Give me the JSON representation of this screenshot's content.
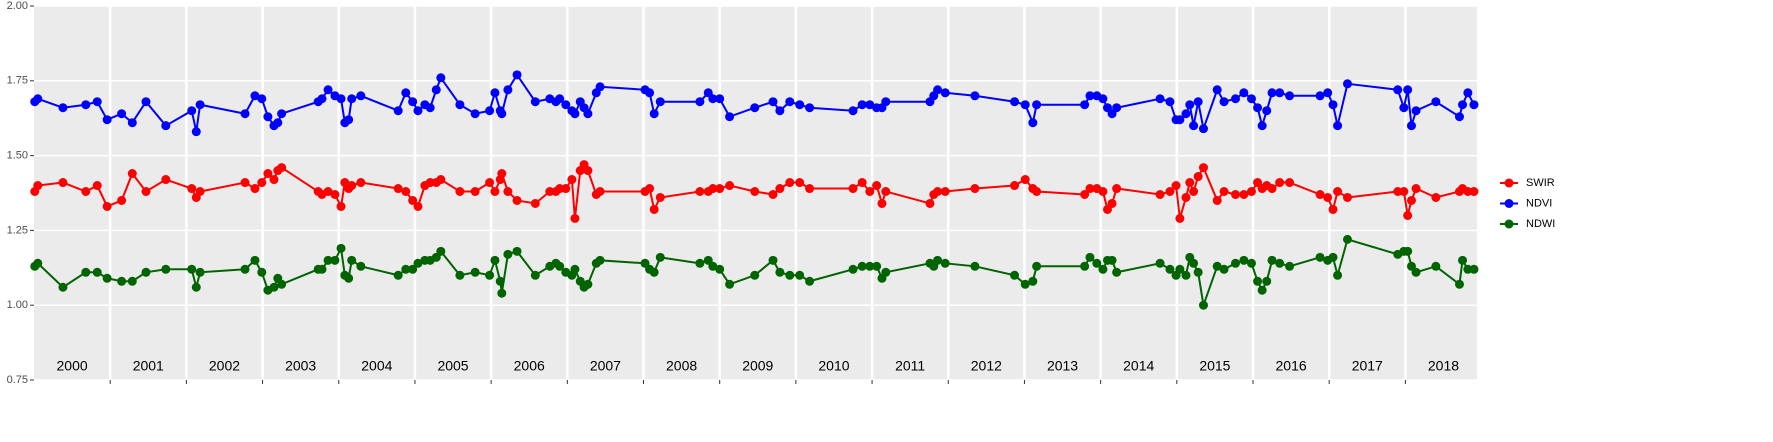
{
  "chart_data": {
    "type": "line",
    "x": [
      2000.01,
      2000.05,
      2000.38,
      2000.68,
      2000.83,
      2000.96,
      2001.15,
      2001.29,
      2001.47,
      2001.73,
      2002.07,
      2002.13,
      2002.18,
      2002.77,
      2002.9,
      2002.99,
      2003.07,
      2003.15,
      2003.2,
      2003.25,
      2003.73,
      2003.78,
      2003.86,
      2003.95,
      2004.03,
      2004.08,
      2004.13,
      2004.17,
      2004.29,
      2004.78,
      2004.88,
      2004.97,
      2005.04,
      2005.13,
      2005.2,
      2005.28,
      2005.34,
      2005.59,
      2005.79,
      2005.98,
      2006.05,
      2006.12,
      2006.14,
      2006.22,
      2006.34,
      2006.58,
      2006.77,
      2006.85,
      2006.9,
      2006.98,
      2007.06,
      2007.1,
      2007.17,
      2007.22,
      2007.27,
      2007.38,
      2007.43,
      2008.02,
      2008.08,
      2008.14,
      2008.22,
      2008.74,
      2008.85,
      2008.91,
      2009.0,
      2009.13,
      2009.46,
      2009.7,
      2009.79,
      2009.92,
      2010.05,
      2010.18,
      2010.75,
      2010.87,
      2010.97,
      2011.06,
      2011.13,
      2011.18,
      2011.76,
      2011.81,
      2011.86,
      2011.96,
      2012.35,
      2012.87,
      2013.01,
      2013.11,
      2013.16,
      2013.79,
      2013.86,
      2013.95,
      2014.03,
      2014.09,
      2014.15,
      2014.21,
      2014.78,
      2014.91,
      2014.99,
      2015.04,
      2015.12,
      2015.17,
      2015.22,
      2015.28,
      2015.35,
      2015.53,
      2015.62,
      2015.77,
      2015.88,
      2015.98,
      2016.06,
      2016.12,
      2016.18,
      2016.25,
      2016.35,
      2016.48,
      2016.88,
      2016.98,
      2017.05,
      2017.11,
      2017.24,
      2017.9,
      2017.98,
      2018.03,
      2018.08,
      2018.14,
      2018.4,
      2018.71,
      2018.75,
      2018.82,
      2018.9
    ],
    "series": [
      {
        "name": "SWIR",
        "color": "#ff0000",
        "values": [
          1.38,
          1.4,
          1.41,
          1.38,
          1.4,
          1.33,
          1.35,
          1.44,
          1.38,
          1.42,
          1.39,
          1.36,
          1.38,
          1.41,
          1.39,
          1.41,
          1.44,
          1.42,
          1.45,
          1.46,
          1.38,
          1.37,
          1.38,
          1.37,
          1.33,
          1.41,
          1.39,
          1.4,
          1.41,
          1.39,
          1.38,
          1.35,
          1.33,
          1.4,
          1.41,
          1.41,
          1.42,
          1.38,
          1.38,
          1.41,
          1.38,
          1.42,
          1.44,
          1.38,
          1.35,
          1.34,
          1.38,
          1.38,
          1.39,
          1.39,
          1.42,
          1.29,
          1.45,
          1.47,
          1.45,
          1.37,
          1.38,
          1.38,
          1.39,
          1.32,
          1.36,
          1.38,
          1.38,
          1.39,
          1.39,
          1.4,
          1.38,
          1.37,
          1.39,
          1.41,
          1.41,
          1.39,
          1.39,
          1.41,
          1.38,
          1.4,
          1.34,
          1.38,
          1.34,
          1.37,
          1.38,
          1.38,
          1.39,
          1.4,
          1.42,
          1.39,
          1.38,
          1.37,
          1.39,
          1.39,
          1.38,
          1.32,
          1.34,
          1.39,
          1.37,
          1.38,
          1.4,
          1.29,
          1.36,
          1.41,
          1.38,
          1.43,
          1.46,
          1.35,
          1.38,
          1.37,
          1.37,
          1.38,
          1.41,
          1.39,
          1.4,
          1.39,
          1.41,
          1.41,
          1.37,
          1.36,
          1.32,
          1.38,
          1.36,
          1.38,
          1.38,
          1.3,
          1.35,
          1.39,
          1.36,
          1.38,
          1.39,
          1.38,
          1.38
        ]
      },
      {
        "name": "NDVI",
        "color": "#0000ff",
        "values": [
          1.68,
          1.69,
          1.66,
          1.67,
          1.68,
          1.62,
          1.64,
          1.61,
          1.68,
          1.6,
          1.65,
          1.58,
          1.67,
          1.64,
          1.7,
          1.69,
          1.63,
          1.6,
          1.61,
          1.64,
          1.68,
          1.69,
          1.72,
          1.7,
          1.69,
          1.61,
          1.62,
          1.69,
          1.7,
          1.65,
          1.71,
          1.68,
          1.65,
          1.67,
          1.66,
          1.72,
          1.76,
          1.67,
          1.64,
          1.65,
          1.71,
          1.65,
          1.64,
          1.72,
          1.77,
          1.68,
          1.69,
          1.68,
          1.69,
          1.67,
          1.65,
          1.64,
          1.68,
          1.66,
          1.64,
          1.71,
          1.73,
          1.72,
          1.71,
          1.64,
          1.68,
          1.68,
          1.71,
          1.69,
          1.69,
          1.63,
          1.66,
          1.68,
          1.65,
          1.68,
          1.67,
          1.66,
          1.65,
          1.67,
          1.67,
          1.66,
          1.66,
          1.68,
          1.68,
          1.7,
          1.72,
          1.71,
          1.7,
          1.68,
          1.67,
          1.61,
          1.67,
          1.67,
          1.7,
          1.7,
          1.69,
          1.66,
          1.64,
          1.66,
          1.69,
          1.68,
          1.62,
          1.62,
          1.64,
          1.67,
          1.6,
          1.68,
          1.59,
          1.72,
          1.68,
          1.69,
          1.71,
          1.69,
          1.66,
          1.6,
          1.65,
          1.71,
          1.71,
          1.7,
          1.7,
          1.71,
          1.67,
          1.6,
          1.74,
          1.72,
          1.66,
          1.72,
          1.6,
          1.65,
          1.68,
          1.63,
          1.67,
          1.71,
          1.67
        ]
      },
      {
        "name": "NDWI",
        "color": "#006400",
        "values": [
          1.13,
          1.14,
          1.06,
          1.11,
          1.11,
          1.09,
          1.08,
          1.08,
          1.11,
          1.12,
          1.12,
          1.06,
          1.11,
          1.12,
          1.15,
          1.11,
          1.05,
          1.06,
          1.09,
          1.07,
          1.12,
          1.12,
          1.15,
          1.15,
          1.19,
          1.1,
          1.09,
          1.15,
          1.13,
          1.1,
          1.12,
          1.12,
          1.14,
          1.15,
          1.15,
          1.16,
          1.18,
          1.1,
          1.11,
          1.1,
          1.15,
          1.08,
          1.04,
          1.17,
          1.18,
          1.1,
          1.13,
          1.14,
          1.13,
          1.11,
          1.1,
          1.12,
          1.08,
          1.06,
          1.07,
          1.14,
          1.15,
          1.14,
          1.12,
          1.11,
          1.16,
          1.14,
          1.15,
          1.13,
          1.12,
          1.07,
          1.1,
          1.15,
          1.11,
          1.1,
          1.1,
          1.08,
          1.12,
          1.13,
          1.13,
          1.13,
          1.09,
          1.11,
          1.14,
          1.13,
          1.15,
          1.14,
          1.13,
          1.1,
          1.07,
          1.08,
          1.13,
          1.13,
          1.16,
          1.14,
          1.12,
          1.15,
          1.15,
          1.11,
          1.14,
          1.12,
          1.1,
          1.12,
          1.1,
          1.16,
          1.14,
          1.11,
          1.0,
          1.13,
          1.12,
          1.14,
          1.15,
          1.14,
          1.08,
          1.05,
          1.08,
          1.15,
          1.14,
          1.13,
          1.16,
          1.15,
          1.16,
          1.1,
          1.22,
          1.17,
          1.18,
          1.18,
          1.13,
          1.11,
          1.13,
          1.07,
          1.15,
          1.12,
          1.12
        ]
      }
    ],
    "xlim": [
      2000,
      2018.94
    ],
    "xticks": [
      {
        "value": 2000.5,
        "label": "2000"
      },
      {
        "value": 2001.5,
        "label": "2001"
      },
      {
        "value": 2002.5,
        "label": "2002"
      },
      {
        "value": 2003.5,
        "label": "2003"
      },
      {
        "value": 2004.5,
        "label": "2004"
      },
      {
        "value": 2005.5,
        "label": "2005"
      },
      {
        "value": 2006.5,
        "label": "2006"
      },
      {
        "value": 2007.5,
        "label": "2007"
      },
      {
        "value": 2008.5,
        "label": "2008"
      },
      {
        "value": 2009.5,
        "label": "2009"
      },
      {
        "value": 2010.5,
        "label": "2010"
      },
      {
        "value": 2011.5,
        "label": "2011"
      },
      {
        "value": 2012.5,
        "label": "2012"
      },
      {
        "value": 2013.5,
        "label": "2013"
      },
      {
        "value": 2014.5,
        "label": "2014"
      },
      {
        "value": 2015.5,
        "label": "2015"
      },
      {
        "value": 2016.5,
        "label": "2016"
      },
      {
        "value": 2017.5,
        "label": "2017"
      },
      {
        "value": 2018.5,
        "label": "2018"
      }
    ],
    "xgrid": [
      2001,
      2002,
      2003,
      2004,
      2005,
      2006,
      2007,
      2008,
      2009,
      2010,
      2011,
      2012,
      2013,
      2014,
      2015,
      2016,
      2017,
      2018
    ],
    "ylim": [
      0.75,
      2.0
    ],
    "yticks": [
      0.75,
      {
        "value": 1,
        "label": "1.00"
      },
      1.25,
      {
        "value": 1.5,
        "label": "1.50"
      },
      1.75,
      {
        "value": 2,
        "label": "2.00"
      }
    ],
    "grid": true,
    "legend": "right"
  }
}
